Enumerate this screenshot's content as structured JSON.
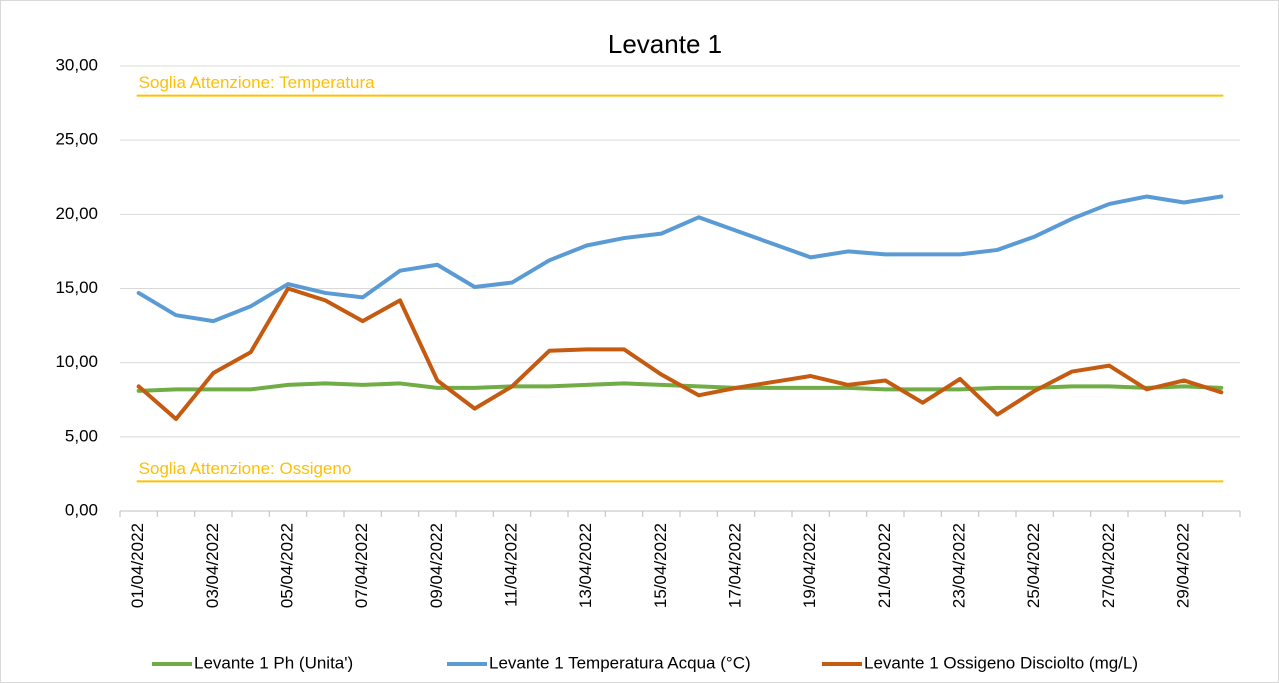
{
  "chart_data": {
    "type": "line",
    "title": "Levante 1",
    "categories": [
      "01/04/2022",
      null,
      "03/04/2022",
      null,
      "05/04/2022",
      null,
      "07/04/2022",
      null,
      "09/04/2022",
      null,
      "11/04/2022",
      null,
      "13/04/2022",
      null,
      "15/04/2022",
      null,
      "17/04/2022",
      null,
      "19/04/2022",
      null,
      "21/04/2022",
      null,
      "23/04/2022",
      null,
      "25/04/2022",
      null,
      "27/04/2022",
      null,
      "29/04/2022",
      null
    ],
    "series": [
      {
        "name": "Levante 1 Ph (Unita')",
        "color": "#70AD47",
        "values": [
          8.1,
          8.2,
          8.2,
          8.2,
          8.5,
          8.6,
          8.5,
          8.6,
          8.3,
          8.3,
          8.4,
          8.4,
          8.5,
          8.6,
          8.5,
          8.4,
          8.3,
          8.3,
          8.3,
          8.3,
          8.2,
          8.2,
          8.2,
          8.3,
          8.3,
          8.4,
          8.4,
          8.3,
          8.4,
          8.3
        ]
      },
      {
        "name": "Levante 1 Temperatura Acqua (°C)",
        "color": "#5B9BD5",
        "values": [
          14.7,
          13.2,
          12.8,
          13.8,
          15.3,
          14.7,
          14.4,
          16.2,
          16.6,
          15.1,
          15.4,
          16.9,
          17.9,
          18.4,
          18.7,
          19.8,
          18.9,
          18.0,
          17.1,
          17.5,
          17.3,
          17.3,
          17.3,
          17.6,
          18.5,
          19.7,
          20.7,
          21.2,
          20.8,
          21.2
        ]
      },
      {
        "name": "Levante 1 Ossigeno Disciolto (mg/L)",
        "color": "#C55A11",
        "values": [
          8.4,
          6.2,
          9.3,
          10.7,
          15.0,
          14.2,
          12.8,
          14.2,
          8.8,
          6.9,
          8.4,
          10.8,
          10.9,
          10.9,
          9.2,
          7.8,
          8.3,
          8.7,
          9.1,
          8.5,
          8.8,
          7.3,
          8.9,
          6.5,
          8.1,
          9.4,
          9.8,
          8.2,
          8.8,
          8.0
        ]
      }
    ],
    "reference_lines": [
      {
        "label": "Soglia Attenzione: Temperatura",
        "value": 28,
        "color": "#FFC000"
      },
      {
        "label": "Soglia Attenzione: Ossigeno",
        "value": 2,
        "color": "#FFC000"
      }
    ],
    "ylim": [
      0,
      30
    ],
    "yticks": [
      {
        "value": 0,
        "label": "0,00"
      },
      {
        "value": 5,
        "label": "5,00"
      },
      {
        "value": 10,
        "label": "10,00"
      },
      {
        "value": 15,
        "label": "15,00"
      },
      {
        "value": 20,
        "label": "20,00"
      },
      {
        "value": 25,
        "label": "25,00"
      },
      {
        "value": 30,
        "label": "30,00"
      }
    ],
    "grid": true,
    "legend": "bottom"
  }
}
